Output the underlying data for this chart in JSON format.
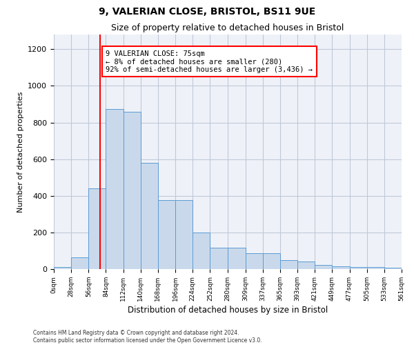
{
  "title1": "9, VALERIAN CLOSE, BRISTOL, BS11 9UE",
  "title2": "Size of property relative to detached houses in Bristol",
  "xlabel": "Distribution of detached houses by size in Bristol",
  "ylabel": "Number of detached properties",
  "annotation_title": "9 VALERIAN CLOSE: 75sqm",
  "annotation_line1": "← 8% of detached houses are smaller (280)",
  "annotation_line2": "92% of semi-detached houses are larger (3,436) →",
  "property_size_sqm": 75,
  "bin_edges": [
    0,
    28,
    56,
    84,
    112,
    140,
    168,
    196,
    224,
    252,
    280,
    309,
    337,
    365,
    393,
    421,
    449,
    477,
    505,
    533,
    561
  ],
  "bar_heights": [
    12,
    65,
    440,
    875,
    860,
    580,
    375,
    375,
    200,
    115,
    115,
    85,
    85,
    50,
    42,
    22,
    15,
    12,
    10,
    8
  ],
  "bar_color": "#c9d9eb",
  "bar_edge_color": "#5b9bd5",
  "vline_color": "red",
  "vline_x": 75,
  "annotation_box_color": "white",
  "annotation_box_edge": "red",
  "grid_color": "#c0c8d8",
  "background_color": "#eef2f8",
  "ylim": [
    0,
    1280
  ],
  "yticks": [
    0,
    200,
    400,
    600,
    800,
    1000,
    1200
  ],
  "footer1": "Contains HM Land Registry data © Crown copyright and database right 2024.",
  "footer2": "Contains public sector information licensed under the Open Government Licence v3.0."
}
